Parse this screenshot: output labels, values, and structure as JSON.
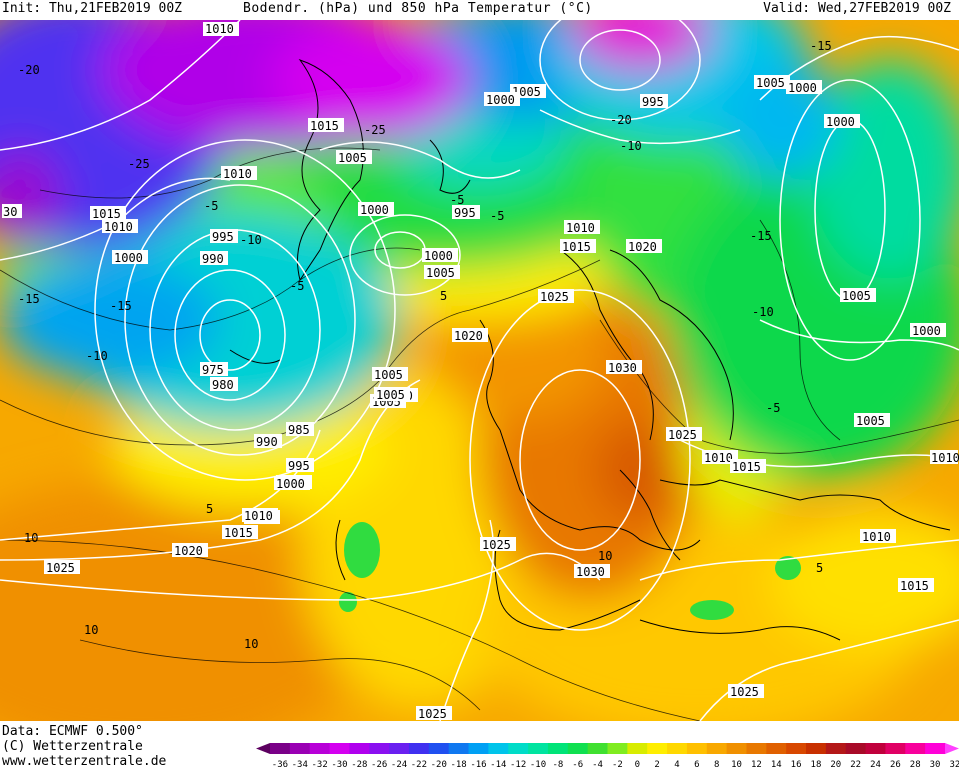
{
  "header": {
    "init": "Init: Thu,21FEB2019 00Z",
    "title": "Bodendr. (hPa) und 850 hPa Temperatur (°C)",
    "valid": "Valid: Wed,27FEB2019 00Z"
  },
  "footer": {
    "data_line": "Data: ECMWF  0.500°",
    "copyright": "(C) Wetterzentrale",
    "url": "www.wetterzentrale.de"
  },
  "colors": {
    "isobar": "#ffffff",
    "coast": "#000000"
  },
  "legend": {
    "ticks": [
      "-36",
      "-34",
      "-32",
      "-30",
      "-28",
      "-26",
      "-24",
      "-22",
      "-20",
      "-18",
      "-16",
      "-14",
      "-12",
      "-10",
      "-8",
      "-6",
      "-4",
      "-2",
      "0",
      "2",
      "4",
      "6",
      "8",
      "10",
      "12",
      "14",
      "16",
      "18",
      "20",
      "22",
      "24",
      "26",
      "28",
      "30",
      "32"
    ],
    "colors": [
      "#5c0060",
      "#7a0088",
      "#9a00b4",
      "#b800d8",
      "#d400f0",
      "#b000ee",
      "#8a10f0",
      "#6a20f0",
      "#4030f0",
      "#2050f0",
      "#1078f0",
      "#00a0f4",
      "#00c4ea",
      "#00dcc8",
      "#00e4a0",
      "#00e478",
      "#10e050",
      "#40e030",
      "#80ec20",
      "#d8ec00",
      "#ffee00",
      "#ffd800",
      "#ffc000",
      "#f8a800",
      "#f09000",
      "#e87800",
      "#e06000",
      "#d84800",
      "#c83000",
      "#b41818",
      "#a80a28",
      "#c0003c",
      "#e00064",
      "#f8009c",
      "#ff00d8",
      "#ff40ff"
    ]
  },
  "map": {
    "isobar_labels": [
      "1010",
      "1015",
      "1005",
      "1010",
      "1015",
      "1010",
      "1000",
      "995",
      "990",
      "975",
      "980",
      "990",
      "985",
      "995",
      "1000",
      "1010",
      "1015",
      "1020",
      "1025",
      "1000",
      "1005",
      "1000",
      "1000",
      "1005",
      "995",
      "1005",
      "995",
      "1005",
      "1000",
      "1000",
      "1010",
      "1015",
      "1020",
      "1025",
      "1020",
      "1030",
      "1025",
      "1010",
      "1015",
      "1005",
      "1025",
      "1030",
      "1010",
      "1015",
      "1025",
      "1005",
      "1000",
      "1000",
      "1005",
      "1010",
      "1000",
      "1005",
      "1025",
      "30",
      "1010"
    ],
    "temp_labels": [
      "-20",
      "-25",
      "-15",
      "-10",
      "-5",
      "-15",
      "-10",
      "-5",
      "10",
      "10",
      "10",
      "5",
      "5",
      "-5",
      "-10",
      "-15",
      "-25",
      "-20",
      "-15",
      "-10",
      "-5",
      "-5",
      "5",
      "10"
    ]
  }
}
